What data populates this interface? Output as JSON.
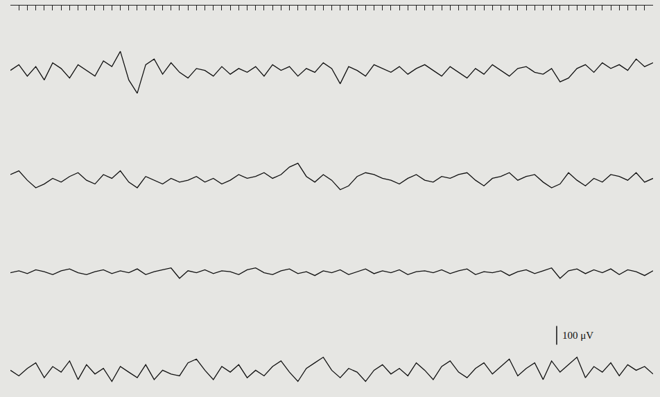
{
  "chart_data": [
    {
      "type": "line",
      "xlim": [
        0,
        76
      ],
      "ylim": [
        -250,
        350
      ],
      "grid": false,
      "tick_labels": false,
      "color": "#111111",
      "xticks": [
        0,
        1,
        2,
        3,
        4,
        5,
        6,
        7,
        8,
        9,
        10,
        11,
        12,
        13,
        14,
        15,
        16,
        17,
        18,
        19,
        20,
        21,
        22,
        23,
        24,
        25,
        26,
        27,
        28,
        29,
        30,
        31,
        32,
        33,
        34,
        35,
        36,
        37,
        38,
        39,
        40,
        41,
        42,
        43,
        44,
        45,
        46,
        47,
        48,
        49,
        50,
        51,
        52,
        53,
        54,
        55,
        56,
        57,
        58,
        59,
        60,
        61,
        62,
        63,
        64,
        65,
        66,
        67,
        68,
        69,
        70,
        71,
        72,
        73,
        74,
        75,
        76
      ],
      "x": [
        0,
        1,
        2,
        3,
        4,
        5,
        6,
        7,
        8,
        9,
        10,
        11,
        12,
        13,
        14,
        15,
        16,
        17,
        18,
        19,
        20,
        21,
        22,
        23,
        24,
        25,
        26,
        27,
        28,
        29,
        30,
        31,
        32,
        33,
        34,
        35,
        36,
        37,
        38,
        39,
        40,
        41,
        42,
        43,
        44,
        45,
        46,
        47,
        48,
        49,
        50,
        51,
        52,
        53,
        54,
        55,
        56,
        57,
        58,
        59,
        60,
        61,
        62,
        63,
        64,
        65,
        66,
        67,
        68,
        69,
        70,
        71,
        72,
        73,
        74,
        75,
        76
      ],
      "values": [
        10,
        40,
        -20,
        30,
        -40,
        50,
        20,
        -30,
        40,
        10,
        -20,
        60,
        30,
        110,
        -40,
        -110,
        40,
        70,
        -10,
        50,
        0,
        -30,
        20,
        10,
        -20,
        30,
        -10,
        20,
        0,
        30,
        -20,
        40,
        10,
        30,
        -20,
        20,
        0,
        50,
        20,
        -60,
        30,
        10,
        -20,
        40,
        20,
        0,
        30,
        -10,
        20,
        40,
        10,
        -20,
        30,
        0,
        -30,
        20,
        -10,
        40,
        10,
        -20,
        20,
        30,
        0,
        -10,
        20,
        -50,
        -30,
        20,
        40,
        0,
        50,
        20,
        40,
        10,
        70,
        30,
        50
      ]
    },
    {
      "type": "line",
      "xlim": [
        0,
        76
      ],
      "ylim": [
        -220,
        320
      ],
      "grid": false,
      "tick_labels": false,
      "color": "#111111",
      "x": [
        0,
        1,
        2,
        3,
        4,
        5,
        6,
        7,
        8,
        9,
        10,
        11,
        12,
        13,
        14,
        15,
        16,
        17,
        18,
        19,
        20,
        21,
        22,
        23,
        24,
        25,
        26,
        27,
        28,
        29,
        30,
        31,
        32,
        33,
        34,
        35,
        36,
        37,
        38,
        39,
        40,
        41,
        42,
        43,
        44,
        45,
        46,
        47,
        48,
        49,
        50,
        51,
        52,
        53,
        54,
        55,
        56,
        57,
        58,
        59,
        60,
        61,
        62,
        63,
        64,
        65,
        66,
        67,
        68,
        69,
        70,
        71,
        72,
        73,
        74,
        75,
        76
      ],
      "values": [
        30,
        50,
        0,
        -40,
        -20,
        10,
        -10,
        20,
        40,
        0,
        -20,
        30,
        10,
        50,
        -10,
        -40,
        20,
        0,
        -20,
        10,
        -10,
        0,
        20,
        -10,
        10,
        -20,
        0,
        30,
        10,
        20,
        40,
        10,
        30,
        70,
        90,
        20,
        -10,
        30,
        0,
        -50,
        -30,
        20,
        40,
        30,
        10,
        0,
        -20,
        10,
        30,
        0,
        -10,
        20,
        10,
        30,
        40,
        0,
        -30,
        10,
        20,
        40,
        0,
        20,
        30,
        -10,
        -40,
        -20,
        40,
        0,
        -30,
        10,
        -10,
        30,
        20,
        0,
        40,
        -10,
        10
      ]
    },
    {
      "type": "line",
      "xlim": [
        0,
        76
      ],
      "ylim": [
        -270,
        270
      ],
      "grid": false,
      "tick_labels": false,
      "color": "#111111",
      "x": [
        0,
        1,
        2,
        3,
        4,
        5,
        6,
        7,
        8,
        9,
        10,
        11,
        12,
        13,
        14,
        15,
        16,
        17,
        18,
        19,
        20,
        21,
        22,
        23,
        24,
        25,
        26,
        27,
        28,
        29,
        30,
        31,
        32,
        33,
        34,
        35,
        36,
        37,
        38,
        39,
        40,
        41,
        42,
        43,
        44,
        45,
        46,
        47,
        48,
        49,
        50,
        51,
        52,
        53,
        54,
        55,
        56,
        57,
        58,
        59,
        60,
        61,
        62,
        63,
        64,
        65,
        66,
        67,
        68,
        69,
        70,
        71,
        72,
        73,
        74,
        75,
        76
      ],
      "values": [
        0,
        10,
        -5,
        15,
        5,
        -10,
        10,
        20,
        0,
        -10,
        5,
        15,
        -5,
        10,
        0,
        20,
        -10,
        5,
        15,
        25,
        -30,
        10,
        0,
        15,
        -5,
        10,
        5,
        -10,
        15,
        25,
        0,
        -10,
        10,
        20,
        -5,
        5,
        -15,
        10,
        0,
        15,
        -10,
        5,
        20,
        -5,
        10,
        0,
        15,
        -10,
        5,
        10,
        0,
        15,
        -5,
        10,
        20,
        -10,
        5,
        0,
        10,
        -15,
        5,
        15,
        -5,
        10,
        25,
        -30,
        10,
        20,
        -5,
        15,
        0,
        20,
        -10,
        15,
        5,
        -15,
        10
      ]
    },
    {
      "type": "line",
      "xlim": [
        0,
        76
      ],
      "ylim": [
        -105,
        270
      ],
      "grid": false,
      "tick_labels": false,
      "color": "#111111",
      "scale_bar": {
        "value": 100,
        "label": "100 μV"
      },
      "x": [
        0,
        1,
        2,
        3,
        4,
        5,
        6,
        7,
        8,
        9,
        10,
        11,
        12,
        13,
        14,
        15,
        16,
        17,
        18,
        19,
        20,
        21,
        22,
        23,
        24,
        25,
        26,
        27,
        28,
        29,
        30,
        31,
        32,
        33,
        34,
        35,
        36,
        37,
        38,
        39,
        40,
        41,
        42,
        43,
        44,
        45,
        46,
        47,
        48,
        49,
        50,
        51,
        52,
        53,
        54,
        55,
        56,
        57,
        58,
        59,
        60,
        61,
        62,
        63,
        64,
        65,
        66,
        67,
        68,
        69,
        70,
        71,
        72,
        73,
        74,
        75,
        76
      ],
      "values": [
        20,
        -10,
        30,
        60,
        -20,
        40,
        10,
        70,
        -30,
        50,
        0,
        30,
        -40,
        40,
        10,
        -20,
        50,
        -30,
        20,
        0,
        -10,
        60,
        80,
        20,
        -30,
        40,
        10,
        50,
        -20,
        20,
        -10,
        40,
        70,
        10,
        -40,
        30,
        60,
        90,
        20,
        -20,
        30,
        10,
        -40,
        20,
        50,
        0,
        30,
        -10,
        60,
        20,
        -30,
        40,
        70,
        10,
        -20,
        30,
        60,
        0,
        40,
        80,
        -10,
        30,
        60,
        -30,
        70,
        10,
        50,
        90,
        -20,
        40,
        10,
        60,
        -10,
        50,
        20,
        40,
        0
      ]
    }
  ]
}
